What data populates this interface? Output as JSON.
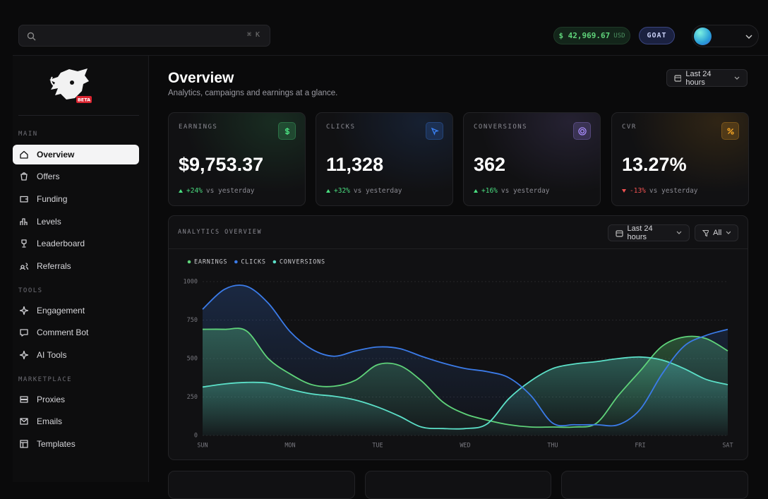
{
  "search": {
    "shortcut": "⌘ K"
  },
  "balance": {
    "amount": "$ 42,969.67",
    "currency": "USD"
  },
  "badge": "GOAT",
  "logo_badge": "BETA",
  "nav": [
    {
      "section": "MAIN",
      "items": [
        "Overview",
        "Offers",
        "Funding",
        "Levels",
        "Leaderboard",
        "Referrals"
      ]
    },
    {
      "section": "TOOLS",
      "items": [
        "Engagement",
        "Comment Bot",
        "AI Tools"
      ]
    },
    {
      "section": "MARKETPLACE",
      "items": [
        "Proxies",
        "Emails",
        "Templates"
      ]
    }
  ],
  "page": {
    "title": "Overview",
    "subtitle": "Analytics, campaigns and earnings at a glance.",
    "range": "Last 24 hours"
  },
  "cards": [
    {
      "label": "EARNINGS",
      "value": "$9,753.37",
      "change": "+24%",
      "compare": "vs yesterday",
      "trend": "up",
      "color": "#4ade80"
    },
    {
      "label": "CLICKS",
      "value": "11,328",
      "change": "+32%",
      "compare": "vs yesterday",
      "trend": "up",
      "color": "#3b82f6"
    },
    {
      "label": "CONVERSIONS",
      "value": "362",
      "change": "+16%",
      "compare": "vs yesterday",
      "trend": "up",
      "color": "#a78bfa"
    },
    {
      "label": "CVR",
      "value": "13.27%",
      "change": "-13%",
      "compare": "vs yesterday",
      "trend": "down",
      "color": "#f5a524"
    }
  ],
  "chart_data": {
    "type": "area",
    "title": "ANALYTICS OVERVIEW",
    "range": "Last 24 hours",
    "filter": "All",
    "categories": [
      "SUN",
      null,
      null,
      null,
      "MON",
      null,
      null,
      null,
      "TUE",
      null,
      null,
      null,
      "WED",
      null,
      null,
      null,
      "THU",
      null,
      null,
      null,
      "FRI",
      null,
      null,
      null,
      "SAT"
    ],
    "series": [
      {
        "name": "EARNINGS",
        "color": "#5fd37a",
        "values": [
          690,
          690,
          680,
          500,
          400,
          330,
          320,
          360,
          460,
          455,
          355,
          215,
          140,
          100,
          70,
          55,
          55,
          55,
          80,
          260,
          420,
          580,
          640,
          630,
          550
        ]
      },
      {
        "name": "CLICKS",
        "color": "#3b7be8",
        "values": [
          820,
          950,
          970,
          860,
          675,
          560,
          515,
          550,
          575,
          565,
          515,
          470,
          435,
          415,
          375,
          260,
          80,
          70,
          70,
          70,
          170,
          400,
          580,
          650,
          690
        ]
      },
      {
        "name": "CONVERSIONS",
        "color": "#5ce0c8",
        "values": [
          315,
          335,
          345,
          340,
          300,
          270,
          255,
          230,
          185,
          125,
          55,
          45,
          45,
          75,
          240,
          355,
          435,
          465,
          480,
          500,
          510,
          490,
          435,
          365,
          330
        ]
      }
    ],
    "ylim": [
      0,
      1000
    ],
    "yticks": [
      0,
      250,
      500,
      750,
      1000
    ],
    "grid": true
  }
}
